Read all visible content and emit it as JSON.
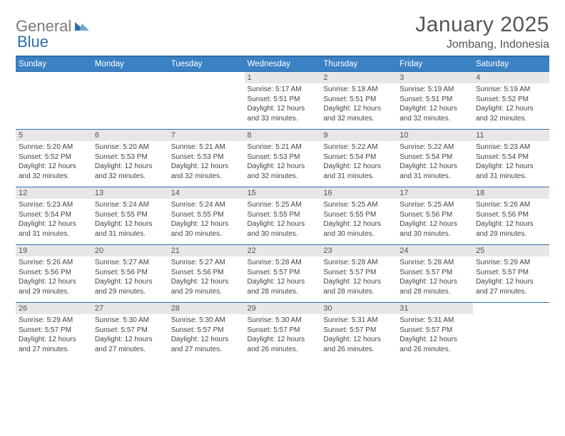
{
  "header": {
    "logo_general": "General",
    "logo_blue": "Blue",
    "title_month": "January 2025",
    "location": "Jombang, Indonesia"
  },
  "colors": {
    "header_bg": "#3b82c4",
    "header_border_top": "#2f6fa8",
    "row_border": "#2f6fa8",
    "daynum_bg": "#e7e7e7",
    "text": "#444444",
    "logo_gray": "#7a7a7a",
    "logo_blue": "#2f6fa8"
  },
  "dow": [
    "Sunday",
    "Monday",
    "Tuesday",
    "Wednesday",
    "Thursday",
    "Friday",
    "Saturday"
  ],
  "days": [
    {
      "n": "",
      "sr": "",
      "ss": "",
      "d1": "",
      "d2": ""
    },
    {
      "n": "",
      "sr": "",
      "ss": "",
      "d1": "",
      "d2": ""
    },
    {
      "n": "",
      "sr": "",
      "ss": "",
      "d1": "",
      "d2": ""
    },
    {
      "n": "1",
      "sr": "Sunrise: 5:17 AM",
      "ss": "Sunset: 5:51 PM",
      "d1": "Daylight: 12 hours",
      "d2": "and 33 minutes."
    },
    {
      "n": "2",
      "sr": "Sunrise: 5:18 AM",
      "ss": "Sunset: 5:51 PM",
      "d1": "Daylight: 12 hours",
      "d2": "and 32 minutes."
    },
    {
      "n": "3",
      "sr": "Sunrise: 5:19 AM",
      "ss": "Sunset: 5:51 PM",
      "d1": "Daylight: 12 hours",
      "d2": "and 32 minutes."
    },
    {
      "n": "4",
      "sr": "Sunrise: 5:19 AM",
      "ss": "Sunset: 5:52 PM",
      "d1": "Daylight: 12 hours",
      "d2": "and 32 minutes."
    },
    {
      "n": "5",
      "sr": "Sunrise: 5:20 AM",
      "ss": "Sunset: 5:52 PM",
      "d1": "Daylight: 12 hours",
      "d2": "and 32 minutes."
    },
    {
      "n": "6",
      "sr": "Sunrise: 5:20 AM",
      "ss": "Sunset: 5:53 PM",
      "d1": "Daylight: 12 hours",
      "d2": "and 32 minutes."
    },
    {
      "n": "7",
      "sr": "Sunrise: 5:21 AM",
      "ss": "Sunset: 5:53 PM",
      "d1": "Daylight: 12 hours",
      "d2": "and 32 minutes."
    },
    {
      "n": "8",
      "sr": "Sunrise: 5:21 AM",
      "ss": "Sunset: 5:53 PM",
      "d1": "Daylight: 12 hours",
      "d2": "and 32 minutes."
    },
    {
      "n": "9",
      "sr": "Sunrise: 5:22 AM",
      "ss": "Sunset: 5:54 PM",
      "d1": "Daylight: 12 hours",
      "d2": "and 31 minutes."
    },
    {
      "n": "10",
      "sr": "Sunrise: 5:22 AM",
      "ss": "Sunset: 5:54 PM",
      "d1": "Daylight: 12 hours",
      "d2": "and 31 minutes."
    },
    {
      "n": "11",
      "sr": "Sunrise: 5:23 AM",
      "ss": "Sunset: 5:54 PM",
      "d1": "Daylight: 12 hours",
      "d2": "and 31 minutes."
    },
    {
      "n": "12",
      "sr": "Sunrise: 5:23 AM",
      "ss": "Sunset: 5:54 PM",
      "d1": "Daylight: 12 hours",
      "d2": "and 31 minutes."
    },
    {
      "n": "13",
      "sr": "Sunrise: 5:24 AM",
      "ss": "Sunset: 5:55 PM",
      "d1": "Daylight: 12 hours",
      "d2": "and 31 minutes."
    },
    {
      "n": "14",
      "sr": "Sunrise: 5:24 AM",
      "ss": "Sunset: 5:55 PM",
      "d1": "Daylight: 12 hours",
      "d2": "and 30 minutes."
    },
    {
      "n": "15",
      "sr": "Sunrise: 5:25 AM",
      "ss": "Sunset: 5:55 PM",
      "d1": "Daylight: 12 hours",
      "d2": "and 30 minutes."
    },
    {
      "n": "16",
      "sr": "Sunrise: 5:25 AM",
      "ss": "Sunset: 5:55 PM",
      "d1": "Daylight: 12 hours",
      "d2": "and 30 minutes."
    },
    {
      "n": "17",
      "sr": "Sunrise: 5:25 AM",
      "ss": "Sunset: 5:56 PM",
      "d1": "Daylight: 12 hours",
      "d2": "and 30 minutes."
    },
    {
      "n": "18",
      "sr": "Sunrise: 5:26 AM",
      "ss": "Sunset: 5:56 PM",
      "d1": "Daylight: 12 hours",
      "d2": "and 29 minutes."
    },
    {
      "n": "19",
      "sr": "Sunrise: 5:26 AM",
      "ss": "Sunset: 5:56 PM",
      "d1": "Daylight: 12 hours",
      "d2": "and 29 minutes."
    },
    {
      "n": "20",
      "sr": "Sunrise: 5:27 AM",
      "ss": "Sunset: 5:56 PM",
      "d1": "Daylight: 12 hours",
      "d2": "and 29 minutes."
    },
    {
      "n": "21",
      "sr": "Sunrise: 5:27 AM",
      "ss": "Sunset: 5:56 PM",
      "d1": "Daylight: 12 hours",
      "d2": "and 29 minutes."
    },
    {
      "n": "22",
      "sr": "Sunrise: 5:28 AM",
      "ss": "Sunset: 5:57 PM",
      "d1": "Daylight: 12 hours",
      "d2": "and 28 minutes."
    },
    {
      "n": "23",
      "sr": "Sunrise: 5:28 AM",
      "ss": "Sunset: 5:57 PM",
      "d1": "Daylight: 12 hours",
      "d2": "and 28 minutes."
    },
    {
      "n": "24",
      "sr": "Sunrise: 5:28 AM",
      "ss": "Sunset: 5:57 PM",
      "d1": "Daylight: 12 hours",
      "d2": "and 28 minutes."
    },
    {
      "n": "25",
      "sr": "Sunrise: 5:29 AM",
      "ss": "Sunset: 5:57 PM",
      "d1": "Daylight: 12 hours",
      "d2": "and 27 minutes."
    },
    {
      "n": "26",
      "sr": "Sunrise: 5:29 AM",
      "ss": "Sunset: 5:57 PM",
      "d1": "Daylight: 12 hours",
      "d2": "and 27 minutes."
    },
    {
      "n": "27",
      "sr": "Sunrise: 5:30 AM",
      "ss": "Sunset: 5:57 PM",
      "d1": "Daylight: 12 hours",
      "d2": "and 27 minutes."
    },
    {
      "n": "28",
      "sr": "Sunrise: 5:30 AM",
      "ss": "Sunset: 5:57 PM",
      "d1": "Daylight: 12 hours",
      "d2": "and 27 minutes."
    },
    {
      "n": "29",
      "sr": "Sunrise: 5:30 AM",
      "ss": "Sunset: 5:57 PM",
      "d1": "Daylight: 12 hours",
      "d2": "and 26 minutes."
    },
    {
      "n": "30",
      "sr": "Sunrise: 5:31 AM",
      "ss": "Sunset: 5:57 PM",
      "d1": "Daylight: 12 hours",
      "d2": "and 26 minutes."
    },
    {
      "n": "31",
      "sr": "Sunrise: 5:31 AM",
      "ss": "Sunset: 5:57 PM",
      "d1": "Daylight: 12 hours",
      "d2": "and 26 minutes."
    },
    {
      "n": "",
      "sr": "",
      "ss": "",
      "d1": "",
      "d2": ""
    }
  ]
}
